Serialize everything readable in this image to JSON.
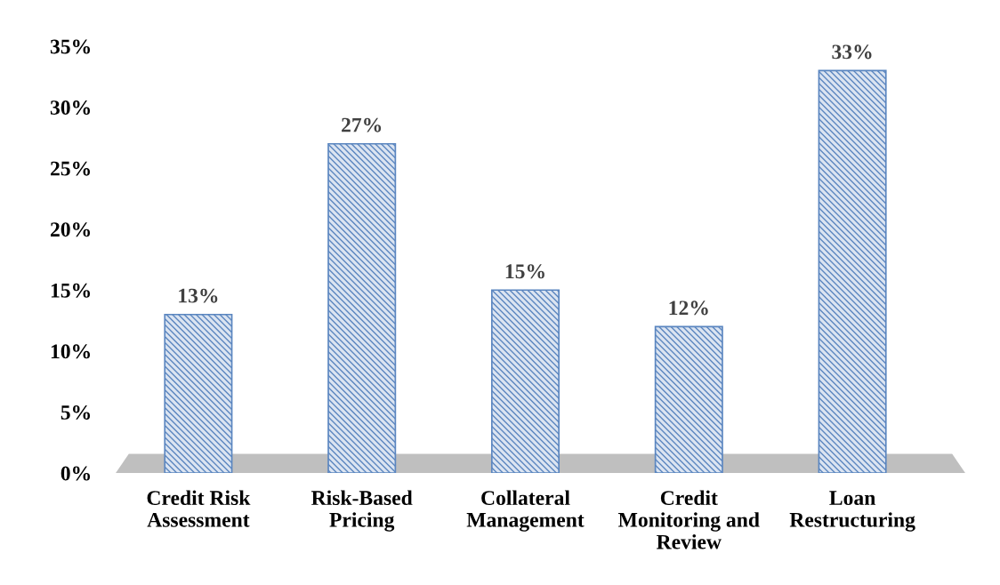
{
  "chart_data": {
    "type": "bar",
    "categories": [
      "Credit Risk Assessment",
      "Risk-Based Pricing",
      "Collateral Management",
      "Credit Monitoring and Review",
      "Loan Restructuring"
    ],
    "values": [
      13,
      27,
      15,
      12,
      33
    ],
    "value_labels": [
      "13%",
      "27%",
      "15%",
      "12%",
      "33%"
    ],
    "color": "#5b86c0",
    "ylim": [
      0,
      35
    ],
    "yticks": [
      {
        "value": 0,
        "label": "0%"
      },
      {
        "value": 5,
        "label": "5%"
      },
      {
        "value": 10,
        "label": "10%"
      },
      {
        "value": 15,
        "label": "15%"
      },
      {
        "value": 20,
        "label": "20%"
      },
      {
        "value": 25,
        "label": "25%"
      },
      {
        "value": 30,
        "label": "30%"
      },
      {
        "value": 35,
        "label": "35%"
      }
    ],
    "grid": false
  }
}
